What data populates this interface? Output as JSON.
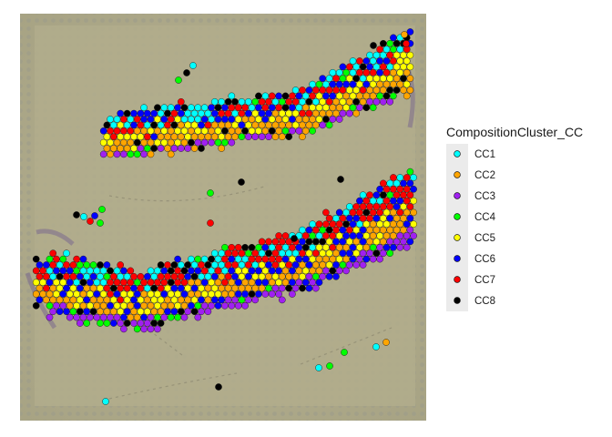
{
  "chart_data": {
    "type": "scatter",
    "title": "",
    "xlabel": "",
    "ylabel": "",
    "background": "tissue histology image (Visium capture area)",
    "legend": {
      "title": "CompositionCluster_CC",
      "placement": "right",
      "entries": [
        {
          "label": "CC1",
          "color": "#00FFFF"
        },
        {
          "label": "CC2",
          "color": "#FFA500"
        },
        {
          "label": "CC3",
          "color": "#A020F0"
        },
        {
          "label": "CC4",
          "color": "#00FF00"
        },
        {
          "label": "CC5",
          "color": "#FFFF00"
        },
        {
          "label": "CC6",
          "color": "#0000FF"
        },
        {
          "label": "CC7",
          "color": "#FF0000"
        },
        {
          "label": "CC8",
          "color": "#000000"
        }
      ]
    },
    "series": [
      {
        "name": "CC1",
        "color": "#00FFFF"
      },
      {
        "name": "CC2",
        "color": "#FFA500"
      },
      {
        "name": "CC3",
        "color": "#A020F0"
      },
      {
        "name": "CC4",
        "color": "#00FF00"
      },
      {
        "name": "CC5",
        "color": "#FFFF00"
      },
      {
        "name": "CC6",
        "color": "#0000FF"
      },
      {
        "name": "CC7",
        "color": "#FF0000"
      },
      {
        "name": "CC8",
        "color": "#000000"
      }
    ]
  }
}
